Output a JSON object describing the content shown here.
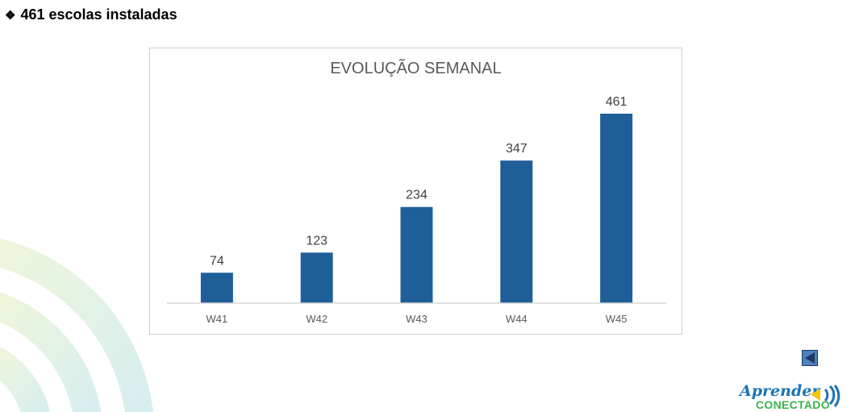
{
  "heading": {
    "bullet": "❖",
    "text": "461 escolas instaladas"
  },
  "chart_data": {
    "type": "bar",
    "title": "EVOLUÇÃO SEMANAL",
    "categories": [
      "W41",
      "W42",
      "W43",
      "W44",
      "W45"
    ],
    "values": [
      74,
      123,
      234,
      347,
      461
    ],
    "xlabel": "",
    "ylabel": "",
    "ylim": [
      0,
      461
    ],
    "grid": false,
    "bar_color": "#1f5f99"
  },
  "nav": {
    "back_icon": "triangle-left-icon"
  },
  "logo": {
    "line1": "Aprender",
    "line2": "CONECTADO"
  }
}
